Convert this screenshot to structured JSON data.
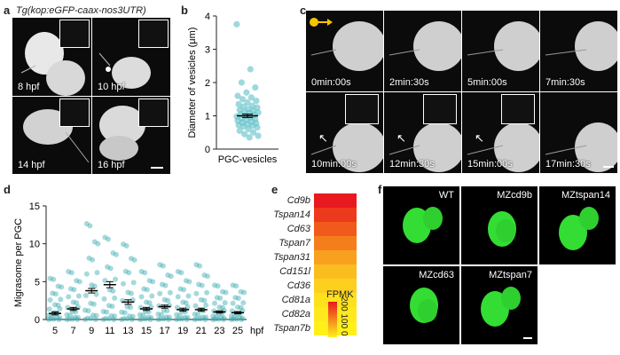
{
  "panels": {
    "a": {
      "label": "a",
      "title": "Tg(kop:eGFP-caax-nos3UTR)",
      "times": [
        "8 hpf",
        "10 hpf",
        "14 hpf",
        "16 hpf"
      ]
    },
    "b": {
      "label": "b"
    },
    "c": {
      "label": "c",
      "times": [
        "0min:00s",
        "2min:30s",
        "5min:00s",
        "7min:30s",
        "10min:00s",
        "12min:30s",
        "15min:00s",
        "17min:30s"
      ]
    },
    "d": {
      "label": "d"
    },
    "e": {
      "label": "e",
      "legend_title": "FPMK",
      "legend_ticks": [
        "200",
        "100",
        "0"
      ]
    },
    "f": {
      "label": "f",
      "genotypes": [
        "WT",
        "MZcd9b",
        "MZtspan14",
        "MZcd63",
        "MZtspan7"
      ]
    }
  },
  "chart_data": [
    {
      "panel": "b",
      "type": "scatter",
      "categories": [
        "PGC-vesicles"
      ],
      "ylabel": "Diameter of vesicles (μm)",
      "ylim": [
        0,
        4
      ],
      "yticks": [
        "0",
        "1",
        "2",
        "3",
        "4"
      ],
      "mean": 1.0,
      "sem": 0.05,
      "points": [
        3.75,
        2.4,
        2.0,
        1.85,
        1.7,
        1.6,
        1.55,
        1.5,
        1.45,
        1.4,
        1.35,
        1.3,
        1.28,
        1.25,
        1.2,
        1.18,
        1.15,
        1.12,
        1.1,
        1.08,
        1.05,
        1.02,
        1.0,
        0.98,
        0.95,
        0.92,
        0.9,
        0.88,
        0.85,
        0.82,
        0.8,
        0.78,
        0.75,
        0.72,
        0.7,
        0.68,
        0.65,
        0.6,
        0.55,
        0.5,
        0.45,
        0.4,
        0.35
      ],
      "color": "#5bbfc6"
    },
    {
      "panel": "d",
      "type": "scatter",
      "ylabel": "Migrasome per PGC",
      "xlabel": "hpf",
      "ylim": [
        0,
        15
      ],
      "yticks": [
        "0",
        "5",
        "10",
        "15"
      ],
      "categories": [
        "5",
        "7",
        "9",
        "11",
        "13",
        "15",
        "17",
        "19",
        "21",
        "23",
        "25"
      ],
      "means": [
        0.8,
        1.4,
        3.8,
        4.6,
        2.3,
        1.4,
        1.7,
        1.3,
        1.3,
        1.0,
        0.9
      ],
      "sems": [
        0.2,
        0.2,
        0.3,
        0.4,
        0.3,
        0.2,
        0.2,
        0.2,
        0.2,
        0.15,
        0.15
      ],
      "maxes": [
        6,
        7,
        14,
        12,
        11,
        7,
        8,
        7,
        8,
        5,
        5
      ],
      "color": "#3aaab0"
    },
    {
      "panel": "e",
      "type": "heatmap",
      "genes": [
        "Cd9b",
        "Tspan14",
        "Cd63",
        "Tspan7",
        "Tspan31",
        "Cd151l",
        "Cd36",
        "Cd81a",
        "Cd82a",
        "Tspan7b"
      ],
      "colors": [
        "#e8191f",
        "#ee3a1c",
        "#f05a1a",
        "#f57e1c",
        "#f9a01e",
        "#fbbd1e",
        "#fdd01f",
        "#fee01d",
        "#ffe81b",
        "#fff01a"
      ],
      "scale_max": "200",
      "scale_mid": "100",
      "scale_min": "0"
    }
  ]
}
